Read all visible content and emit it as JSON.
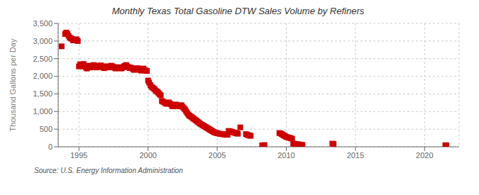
{
  "chart_data": {
    "type": "scatter",
    "title": "Monthly Texas Total Gasoline DTW Sales Volume by Refiners",
    "y_label": "Thousand Gallons per Day",
    "annotations": [
      "Source: U.S. Energy Information Administration"
    ],
    "color": "#cc0000",
    "marker": "square",
    "grid": true,
    "xlim": [
      1993.5,
      2022.5
    ],
    "xticks": [
      1995,
      2000,
      2005,
      2010,
      2015,
      2020
    ],
    "ylim": [
      0,
      3500
    ],
    "yticks": [
      0,
      500,
      {
        "value": 1000,
        "label": "1,000"
      },
      {
        "value": 1500,
        "label": "1,500"
      },
      {
        "value": 2000,
        "label": "2,000"
      },
      {
        "value": 2500,
        "label": "2,500"
      },
      {
        "value": 3000,
        "label": "3,000"
      },
      {
        "value": 3500,
        "label": "3,500"
      }
    ],
    "x": [
      1993.75,
      1994.0,
      1994.08,
      1994.17,
      1994.25,
      1994.33,
      1994.42,
      1994.5,
      1994.58,
      1994.67,
      1994.75,
      1994.83,
      1994.92,
      1995.0,
      1995.08,
      1995.17,
      1995.25,
      1995.33,
      1995.42,
      1995.5,
      1995.58,
      1995.67,
      1995.75,
      1995.83,
      1995.92,
      1996.0,
      1996.08,
      1996.17,
      1996.25,
      1996.33,
      1996.42,
      1996.5,
      1996.58,
      1996.67,
      1996.75,
      1996.83,
      1996.92,
      1997.0,
      1997.08,
      1997.17,
      1997.25,
      1997.33,
      1997.42,
      1997.5,
      1997.58,
      1997.67,
      1997.75,
      1997.83,
      1997.92,
      1998.0,
      1998.08,
      1998.17,
      1998.25,
      1998.33,
      1998.42,
      1998.5,
      1998.58,
      1998.67,
      1998.75,
      1998.83,
      1998.92,
      1999.0,
      1999.08,
      1999.17,
      1999.25,
      1999.33,
      1999.42,
      1999.5,
      1999.58,
      1999.67,
      1999.75,
      1999.83,
      1999.92,
      2000.0,
      2000.08,
      2000.17,
      2000.25,
      2000.33,
      2000.42,
      2000.5,
      2000.58,
      2000.67,
      2000.75,
      2000.83,
      2000.92,
      2001.0,
      2001.08,
      2001.17,
      2001.25,
      2001.33,
      2001.42,
      2001.5,
      2001.58,
      2001.67,
      2001.75,
      2001.83,
      2001.92,
      2002.0,
      2002.08,
      2002.17,
      2002.25,
      2002.33,
      2002.42,
      2002.5,
      2002.58,
      2002.67,
      2002.75,
      2002.83,
      2002.92,
      2003.0,
      2003.08,
      2003.17,
      2003.25,
      2003.33,
      2003.42,
      2003.5,
      2003.58,
      2003.67,
      2003.75,
      2003.83,
      2003.92,
      2004.0,
      2004.08,
      2004.17,
      2004.25,
      2004.33,
      2004.42,
      2004.5,
      2004.58,
      2004.67,
      2004.75,
      2004.83,
      2004.92,
      2005.0,
      2005.08,
      2005.17,
      2005.25,
      2005.33,
      2005.42,
      2005.5,
      2005.58,
      2005.67,
      2005.75,
      2005.83,
      2005.92,
      2006.0,
      2006.08,
      2006.17,
      2006.25,
      2006.33,
      2006.42,
      2006.5,
      2006.67,
      2007.08,
      2007.17,
      2007.25,
      2007.33,
      2007.42,
      2008.25,
      2008.33,
      2008.42,
      2009.5,
      2009.58,
      2009.67,
      2009.75,
      2009.83,
      2009.92,
      2010.0,
      2010.08,
      2010.17,
      2010.25,
      2010.33,
      2010.42,
      2010.5,
      2010.58,
      2010.67,
      2010.75,
      2010.83,
      2010.92,
      2011.0,
      2011.08,
      2011.17,
      2013.33,
      2013.42,
      2021.5,
      2021.58
    ],
    "values": [
      2850,
      3200,
      3240,
      3210,
      3150,
      3100,
      3080,
      3060,
      3020,
      3030,
      3020,
      3050,
      3000,
      2280,
      2340,
      2300,
      2280,
      2350,
      2300,
      2250,
      2220,
      2280,
      2300,
      2250,
      2280,
      2300,
      2320,
      2280,
      2250,
      2300,
      2280,
      2260,
      2310,
      2280,
      2250,
      2230,
      2280,
      2280,
      2260,
      2250,
      2270,
      2300,
      2280,
      2260,
      2240,
      2220,
      2240,
      2260,
      2250,
      2240,
      2220,
      2250,
      2280,
      2300,
      2320,
      2280,
      2260,
      2230,
      2250,
      2230,
      2200,
      2180,
      2200,
      2220,
      2230,
      2200,
      2180,
      2160,
      2200,
      2220,
      2180,
      2160,
      2150,
      1880,
      1820,
      1750,
      1700,
      1680,
      1650,
      1620,
      1580,
      1560,
      1530,
      1490,
      1460,
      1300,
      1280,
      1260,
      1240,
      1220,
      1220,
      1260,
      1230,
      1200,
      1150,
      1180,
      1150,
      1200,
      1180,
      1160,
      1170,
      1150,
      1180,
      1130,
      1100,
      1060,
      1010,
      960,
      910,
      880,
      860,
      840,
      810,
      790,
      760,
      740,
      710,
      690,
      660,
      640,
      620,
      600,
      580,
      560,
      540,
      520,
      500,
      480,
      460,
      440,
      420,
      405,
      395,
      385,
      380,
      370,
      365,
      360,
      360,
      350,
      345,
      340,
      340,
      450,
      440,
      430,
      420,
      410,
      400,
      390,
      380,
      370,
      550,
      360,
      345,
      330,
      320,
      310,
      40,
      35,
      50,
      390,
      380,
      360,
      340,
      320,
      300,
      280,
      270,
      260,
      250,
      240,
      230,
      90,
      85,
      80,
      75,
      70,
      65,
      60,
      55,
      50,
      90,
      80,
      45,
      40
    ]
  }
}
